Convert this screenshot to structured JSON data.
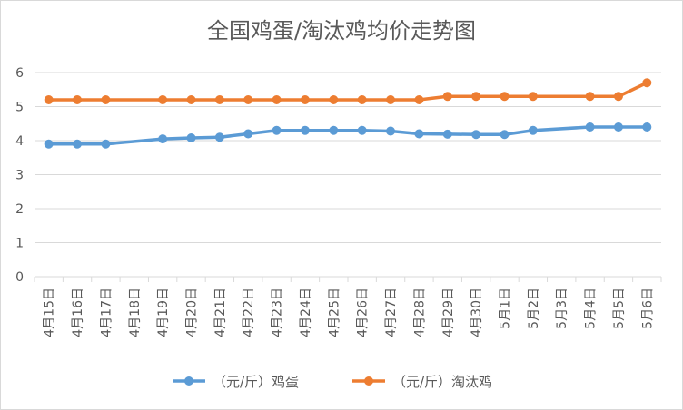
{
  "chart_data": {
    "type": "line",
    "title": "全国鸡蛋/淘汰鸡均价走势图",
    "categories": [
      "4月15日",
      "4月16日",
      "4月17日",
      "4月18日",
      "4月19日",
      "4月20日",
      "4月21日",
      "4月22日",
      "4月23日",
      "4月24日",
      "4月25日",
      "4月26日",
      "4月27日",
      "4月28日",
      "4月29日",
      "4月30日",
      "5月1日",
      "5月2日",
      "5月3日",
      "5月4日",
      "5月5日",
      "5月6日"
    ],
    "ylim": [
      0,
      6
    ],
    "yticks": [
      0,
      1,
      2,
      3,
      4,
      5,
      6
    ],
    "grid": true,
    "legend_position": "bottom",
    "series": [
      {
        "name": "（元/斤）鸡蛋",
        "color": "#5b9bd5",
        "values": [
          3.9,
          3.9,
          3.9,
          null,
          4.05,
          4.08,
          4.1,
          4.2,
          4.3,
          4.3,
          4.3,
          4.3,
          4.28,
          4.2,
          4.19,
          4.18,
          4.18,
          4.3,
          null,
          4.4,
          4.4,
          4.4
        ]
      },
      {
        "name": "（元/斤）淘汰鸡",
        "color": "#ed7d31",
        "values": [
          5.2,
          5.2,
          5.2,
          null,
          5.2,
          5.2,
          5.2,
          5.2,
          5.2,
          5.2,
          5.2,
          5.2,
          5.2,
          5.2,
          5.3,
          5.3,
          5.3,
          5.3,
          null,
          5.3,
          5.3,
          5.7
        ]
      }
    ]
  }
}
